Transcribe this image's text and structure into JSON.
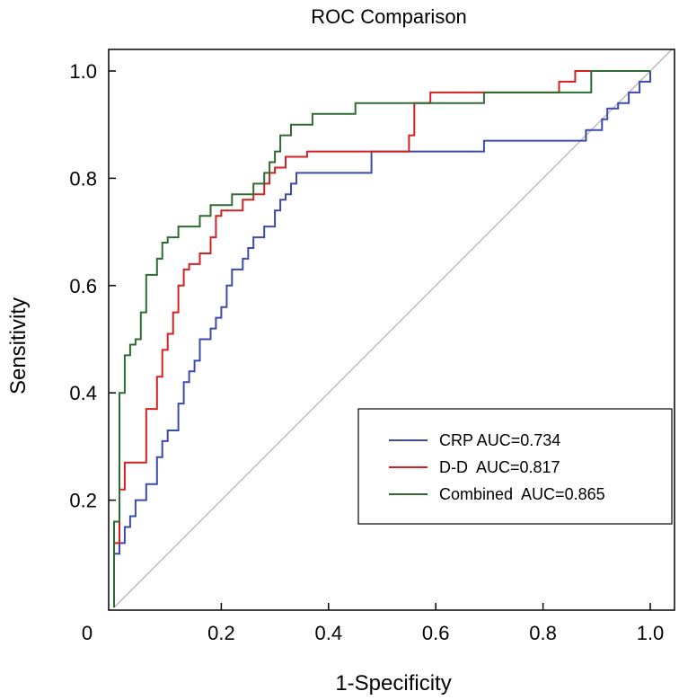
{
  "chart_data": {
    "type": "line",
    "title": "ROC Comparison",
    "xlabel": "1-Specificity",
    "ylabel": "Sensitivity",
    "xlim": [
      0,
      1.05
    ],
    "ylim": [
      0,
      1.02
    ],
    "x_ticks": [
      {
        "value": 0,
        "label": "0"
      },
      {
        "value": 0.2,
        "label": "0.2"
      },
      {
        "value": 0.4,
        "label": "0.4"
      },
      {
        "value": 0.6,
        "label": "0.6"
      },
      {
        "value": 0.8,
        "label": "0.8"
      },
      {
        "value": 1.0,
        "label": "1.0"
      }
    ],
    "y_ticks": [
      {
        "value": 0.2,
        "label": "0.2"
      },
      {
        "value": 0.4,
        "label": "0.4"
      },
      {
        "value": 0.6,
        "label": "0.6"
      },
      {
        "value": 0.8,
        "label": "0.8"
      },
      {
        "value": 1.0,
        "label": "1.0"
      }
    ],
    "reference_line": {
      "x": [
        0,
        1.05
      ],
      "y": [
        0,
        1.05
      ],
      "color": "#c0c0c0"
    },
    "legend_position": "lower-right",
    "series": [
      {
        "name": "CRP AUC=0.734",
        "color": "#3b4bab",
        "x": [
          0,
          0,
          0.01,
          0.01,
          0.02,
          0.02,
          0.03,
          0.03,
          0.04,
          0.04,
          0.06,
          0.06,
          0.08,
          0.08,
          0.09,
          0.09,
          0.1,
          0.1,
          0.12,
          0.12,
          0.13,
          0.13,
          0.14,
          0.14,
          0.15,
          0.15,
          0.16,
          0.16,
          0.18,
          0.18,
          0.19,
          0.19,
          0.2,
          0.2,
          0.21,
          0.21,
          0.22,
          0.22,
          0.24,
          0.24,
          0.25,
          0.25,
          0.26,
          0.26,
          0.28,
          0.28,
          0.3,
          0.3,
          0.31,
          0.31,
          0.32,
          0.32,
          0.33,
          0.33,
          0.34,
          0.34,
          0.36,
          0.36,
          0.4,
          0.4,
          0.48,
          0.48,
          0.56,
          0.56,
          0.69,
          0.69,
          0.86,
          0.86,
          0.88,
          0.88,
          0.9,
          0.9,
          0.91,
          0.91,
          0.92,
          0.92,
          0.94,
          0.94,
          0.96,
          0.96,
          0.97,
          0.97,
          0.98,
          0.98,
          0.99,
          0.99,
          1.0,
          1.0
        ],
        "y": [
          0,
          0.1,
          0.1,
          0.12,
          0.12,
          0.15,
          0.15,
          0.17,
          0.17,
          0.2,
          0.2,
          0.23,
          0.23,
          0.28,
          0.28,
          0.31,
          0.31,
          0.33,
          0.33,
          0.38,
          0.38,
          0.42,
          0.42,
          0.44,
          0.44,
          0.46,
          0.46,
          0.5,
          0.5,
          0.52,
          0.52,
          0.54,
          0.54,
          0.56,
          0.56,
          0.6,
          0.6,
          0.63,
          0.63,
          0.65,
          0.65,
          0.67,
          0.67,
          0.69,
          0.69,
          0.71,
          0.71,
          0.74,
          0.74,
          0.76,
          0.76,
          0.77,
          0.77,
          0.79,
          0.79,
          0.81,
          0.81,
          0.81,
          0.81,
          0.81,
          0.81,
          0.85,
          0.85,
          0.85,
          0.85,
          0.87,
          0.87,
          0.87,
          0.87,
          0.89,
          0.89,
          0.89,
          0.89,
          0.91,
          0.91,
          0.93,
          0.93,
          0.94,
          0.94,
          0.96,
          0.96,
          0.96,
          0.96,
          0.98,
          0.98,
          0.98,
          0.98,
          1.0
        ]
      },
      {
        "name": "D-D  AUC=0.817",
        "color": "#d42020",
        "x": [
          0,
          0,
          0.01,
          0.01,
          0.02,
          0.02,
          0.06,
          0.06,
          0.08,
          0.08,
          0.09,
          0.09,
          0.1,
          0.1,
          0.11,
          0.11,
          0.12,
          0.12,
          0.13,
          0.13,
          0.14,
          0.14,
          0.16,
          0.16,
          0.18,
          0.18,
          0.19,
          0.19,
          0.2,
          0.2,
          0.22,
          0.22,
          0.24,
          0.24,
          0.26,
          0.26,
          0.28,
          0.28,
          0.29,
          0.29,
          0.3,
          0.3,
          0.32,
          0.32,
          0.36,
          0.36,
          0.44,
          0.44,
          0.55,
          0.55,
          0.56,
          0.56,
          0.59,
          0.59,
          0.69,
          0.69,
          0.83,
          0.83,
          0.86,
          0.86,
          0.9,
          0.9,
          1.0
        ],
        "y": [
          0,
          0.12,
          0.12,
          0.22,
          0.22,
          0.27,
          0.27,
          0.37,
          0.37,
          0.43,
          0.43,
          0.48,
          0.48,
          0.51,
          0.51,
          0.55,
          0.55,
          0.6,
          0.6,
          0.63,
          0.63,
          0.64,
          0.64,
          0.66,
          0.66,
          0.69,
          0.69,
          0.73,
          0.73,
          0.74,
          0.74,
          0.74,
          0.74,
          0.76,
          0.76,
          0.77,
          0.77,
          0.79,
          0.79,
          0.81,
          0.81,
          0.82,
          0.82,
          0.84,
          0.84,
          0.85,
          0.85,
          0.85,
          0.85,
          0.88,
          0.88,
          0.94,
          0.94,
          0.96,
          0.96,
          0.96,
          0.96,
          0.98,
          0.98,
          1.0,
          1.0,
          1.0,
          1.0
        ]
      },
      {
        "name": "Combined  AUC=0.865",
        "color": "#2e6b30",
        "x": [
          0,
          0,
          0.01,
          0.01,
          0.02,
          0.02,
          0.03,
          0.03,
          0.04,
          0.04,
          0.05,
          0.05,
          0.06,
          0.06,
          0.07,
          0.07,
          0.08,
          0.08,
          0.09,
          0.09,
          0.1,
          0.1,
          0.12,
          0.12,
          0.14,
          0.14,
          0.16,
          0.16,
          0.18,
          0.18,
          0.2,
          0.2,
          0.22,
          0.22,
          0.24,
          0.24,
          0.26,
          0.26,
          0.28,
          0.28,
          0.29,
          0.29,
          0.3,
          0.3,
          0.31,
          0.31,
          0.33,
          0.33,
          0.35,
          0.35,
          0.37,
          0.37,
          0.41,
          0.41,
          0.45,
          0.45,
          0.69,
          0.69,
          0.89,
          0.89,
          1.0
        ],
        "y": [
          0,
          0.16,
          0.16,
          0.4,
          0.4,
          0.47,
          0.47,
          0.49,
          0.49,
          0.5,
          0.5,
          0.55,
          0.55,
          0.62,
          0.62,
          0.62,
          0.62,
          0.65,
          0.65,
          0.68,
          0.68,
          0.69,
          0.69,
          0.71,
          0.71,
          0.71,
          0.71,
          0.73,
          0.73,
          0.75,
          0.75,
          0.75,
          0.75,
          0.77,
          0.77,
          0.77,
          0.77,
          0.79,
          0.79,
          0.81,
          0.81,
          0.83,
          0.83,
          0.85,
          0.85,
          0.88,
          0.88,
          0.9,
          0.9,
          0.9,
          0.9,
          0.92,
          0.92,
          0.92,
          0.92,
          0.94,
          0.94,
          0.96,
          0.96,
          1.0,
          1.0
        ]
      }
    ]
  }
}
